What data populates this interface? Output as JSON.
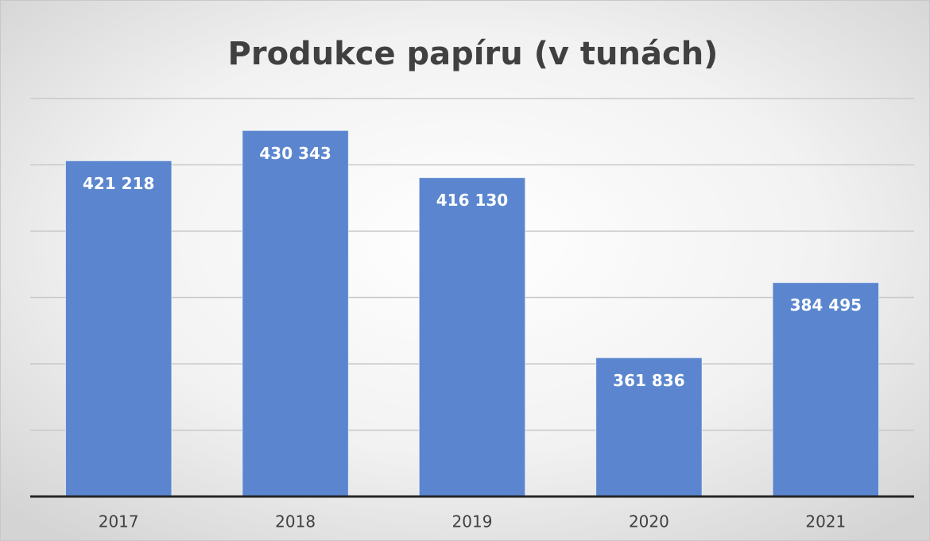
{
  "chart_data": {
    "type": "bar",
    "title": "Produkce papíru (v tunách)",
    "categories": [
      "2017",
      "2018",
      "2019",
      "2020",
      "2021"
    ],
    "values": [
      421218,
      430343,
      416130,
      361836,
      384495
    ],
    "value_labels": [
      "421 218",
      "430 343",
      "416 130",
      "361 836",
      "384 495"
    ],
    "color": "#5b86cf",
    "ylim": [
      320000,
      440000
    ],
    "yticks": [
      320000,
      340000,
      360000,
      380000,
      400000,
      420000,
      440000
    ],
    "grid": true
  }
}
